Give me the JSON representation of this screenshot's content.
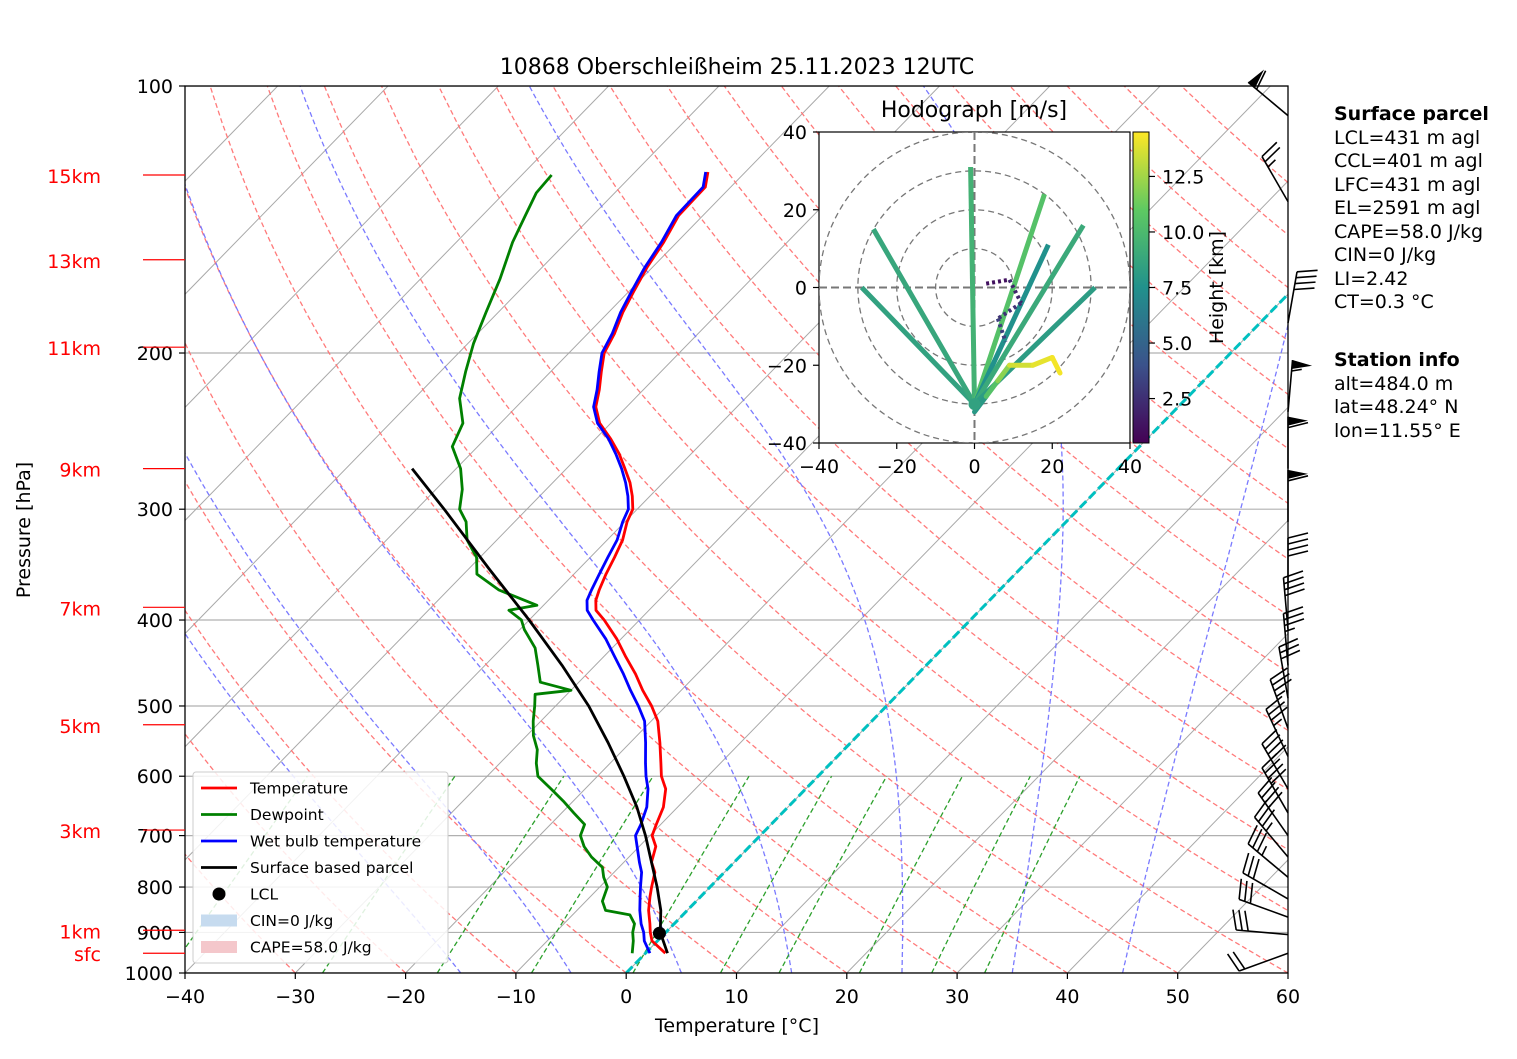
{
  "chart_data": {
    "type": "line",
    "title": "10868 Oberschleißheim 25.11.2023 12UTC",
    "xlabel": "Temperature [°C]",
    "ylabel": "Pressure [hPa]",
    "xlim": [
      -40,
      60
    ],
    "ylim": [
      1000,
      100
    ],
    "x_ticks": [
      "−40",
      "−30",
      "−20",
      "−10",
      "0",
      "10",
      "20",
      "30",
      "40",
      "50",
      "60"
    ],
    "y_ticks": [
      {
        "p": 100,
        "label": "100"
      },
      {
        "p": 200,
        "label": "200"
      },
      {
        "p": 300,
        "label": "300"
      },
      {
        "p": 400,
        "label": "400"
      },
      {
        "p": 500,
        "label": "500"
      },
      {
        "p": 600,
        "label": "600"
      },
      {
        "p": 700,
        "label": "700"
      },
      {
        "p": 800,
        "label": "800"
      },
      {
        "p": 900,
        "label": "900"
      },
      {
        "p": 1000,
        "label": "1000"
      }
    ],
    "height_labels": [
      {
        "p": 126,
        "label": "15km"
      },
      {
        "p": 157,
        "label": "13km"
      },
      {
        "p": 197,
        "label": "11km"
      },
      {
        "p": 270,
        "label": "9km"
      },
      {
        "p": 387,
        "label": "7km"
      },
      {
        "p": 525,
        "label": "5km"
      },
      {
        "p": 690,
        "label": "3km"
      },
      {
        "p": 895,
        "label": "1km"
      },
      {
        "p": 950,
        "label": "sfc"
      }
    ],
    "series": [
      {
        "name": "Temperature",
        "color": "#ff0000",
        "points": [
          [
            950,
            1.8
          ],
          [
            920,
            -0.5
          ],
          [
            900,
            -1.4
          ],
          [
            880,
            -2.2
          ],
          [
            850,
            -3.5
          ],
          [
            820,
            -4.6
          ],
          [
            800,
            -5.3
          ],
          [
            770,
            -6.3
          ],
          [
            750,
            -7.5
          ],
          [
            720,
            -8.5
          ],
          [
            700,
            -9.8
          ],
          [
            680,
            -10.4
          ],
          [
            650,
            -11.3
          ],
          [
            620,
            -12.7
          ],
          [
            600,
            -14.2
          ],
          [
            580,
            -15.4
          ],
          [
            550,
            -17.3
          ],
          [
            520,
            -19.4
          ],
          [
            500,
            -21.3
          ],
          [
            480,
            -23.5
          ],
          [
            460,
            -25.6
          ],
          [
            440,
            -28.0
          ],
          [
            420,
            -30.4
          ],
          [
            400,
            -33.2
          ],
          [
            390,
            -34.8
          ],
          [
            380,
            -35.7
          ],
          [
            370,
            -36.3
          ],
          [
            355,
            -37.1
          ],
          [
            340,
            -37.8
          ],
          [
            325,
            -38.6
          ],
          [
            310,
            -39.8
          ],
          [
            300,
            -40.4
          ],
          [
            290,
            -41.6
          ],
          [
            280,
            -43.0
          ],
          [
            270,
            -44.7
          ],
          [
            260,
            -46.5
          ],
          [
            250,
            -48.6
          ],
          [
            240,
            -51.0
          ],
          [
            230,
            -52.8
          ],
          [
            220,
            -54.0
          ],
          [
            210,
            -55.4
          ],
          [
            200,
            -56.8
          ],
          [
            190,
            -57.6
          ],
          [
            180,
            -58.7
          ],
          [
            170,
            -59.6
          ],
          [
            160,
            -60.5
          ],
          [
            150,
            -61.2
          ],
          [
            140,
            -62.2
          ],
          [
            130,
            -62.3
          ],
          [
            125,
            -63.4
          ]
        ]
      },
      {
        "name": "Dewpoint",
        "color": "#008000",
        "points": [
          [
            950,
            -1.2
          ],
          [
            920,
            -2.2
          ],
          [
            900,
            -3.0
          ],
          [
            880,
            -3.6
          ],
          [
            860,
            -4.8
          ],
          [
            850,
            -7.4
          ],
          [
            830,
            -8.5
          ],
          [
            800,
            -9.3
          ],
          [
            780,
            -10.5
          ],
          [
            760,
            -11.5
          ],
          [
            740,
            -13.4
          ],
          [
            720,
            -15.0
          ],
          [
            700,
            -16.3
          ],
          [
            680,
            -16.9
          ],
          [
            660,
            -18.9
          ],
          [
            640,
            -20.9
          ],
          [
            620,
            -23.1
          ],
          [
            600,
            -25.4
          ],
          [
            580,
            -26.7
          ],
          [
            560,
            -27.8
          ],
          [
            540,
            -29.4
          ],
          [
            520,
            -30.7
          ],
          [
            500,
            -31.9
          ],
          [
            485,
            -32.9
          ],
          [
            480,
            -30.0
          ],
          [
            470,
            -33.5
          ],
          [
            450,
            -35.2
          ],
          [
            430,
            -37.0
          ],
          [
            410,
            -39.6
          ],
          [
            400,
            -40.7
          ],
          [
            390,
            -42.7
          ],
          [
            385,
            -40.6
          ],
          [
            370,
            -45.4
          ],
          [
            355,
            -48.8
          ],
          [
            340,
            -50.3
          ],
          [
            325,
            -52.7
          ],
          [
            310,
            -54.4
          ],
          [
            300,
            -56.1
          ],
          [
            285,
            -57.6
          ],
          [
            270,
            -59.6
          ],
          [
            255,
            -62.3
          ],
          [
            240,
            -63.4
          ],
          [
            225,
            -65.9
          ],
          [
            210,
            -67.7
          ],
          [
            195,
            -69.5
          ],
          [
            180,
            -71.1
          ],
          [
            165,
            -72.8
          ],
          [
            150,
            -74.9
          ],
          [
            140,
            -76.1
          ],
          [
            132,
            -77.1
          ],
          [
            126,
            -77.3
          ]
        ]
      },
      {
        "name": "Wet bulb temperature",
        "color": "#0000ff",
        "points": [
          [
            950,
            0.4
          ],
          [
            920,
            -1.2
          ],
          [
            900,
            -2.0
          ],
          [
            880,
            -3.0
          ],
          [
            850,
            -4.3
          ],
          [
            820,
            -5.5
          ],
          [
            800,
            -6.3
          ],
          [
            770,
            -7.5
          ],
          [
            750,
            -8.6
          ],
          [
            720,
            -10.2
          ],
          [
            700,
            -11.3
          ],
          [
            680,
            -11.8
          ],
          [
            650,
            -12.8
          ],
          [
            620,
            -14.3
          ],
          [
            600,
            -15.6
          ],
          [
            580,
            -16.8
          ],
          [
            550,
            -18.6
          ],
          [
            520,
            -20.6
          ],
          [
            500,
            -22.5
          ],
          [
            480,
            -24.6
          ],
          [
            460,
            -26.7
          ],
          [
            440,
            -29.0
          ],
          [
            420,
            -31.4
          ],
          [
            400,
            -34.2
          ],
          [
            390,
            -35.6
          ],
          [
            380,
            -36.5
          ],
          [
            370,
            -37.0
          ],
          [
            355,
            -37.7
          ],
          [
            340,
            -38.4
          ],
          [
            325,
            -39.1
          ],
          [
            310,
            -40.2
          ],
          [
            300,
            -40.8
          ],
          [
            290,
            -42.0
          ],
          [
            280,
            -43.4
          ],
          [
            270,
            -45.0
          ],
          [
            260,
            -46.8
          ],
          [
            250,
            -48.8
          ],
          [
            240,
            -51.2
          ],
          [
            230,
            -53.0
          ],
          [
            220,
            -54.2
          ],
          [
            210,
            -55.6
          ],
          [
            200,
            -57.0
          ],
          [
            190,
            -57.8
          ],
          [
            180,
            -58.9
          ],
          [
            170,
            -59.8
          ],
          [
            160,
            -60.7
          ],
          [
            150,
            -61.4
          ],
          [
            140,
            -62.4
          ],
          [
            130,
            -62.5
          ],
          [
            125,
            -63.6
          ]
        ]
      },
      {
        "name": "Surface based parcel",
        "color": "#000000",
        "points": [
          [
            950,
            2.0
          ],
          [
            900,
            -0.5
          ],
          [
            850,
            -2.4
          ],
          [
            800,
            -4.8
          ],
          [
            750,
            -7.5
          ],
          [
            700,
            -10.4
          ],
          [
            650,
            -13.7
          ],
          [
            600,
            -17.6
          ],
          [
            550,
            -22.0
          ],
          [
            500,
            -27.0
          ],
          [
            450,
            -33.0
          ],
          [
            400,
            -40.0
          ],
          [
            350,
            -48.2
          ],
          [
            300,
            -57.5
          ],
          [
            270,
            -64.0
          ]
        ]
      }
    ],
    "lcl": {
      "name": "LCL",
      "temperature": -0.5,
      "pressure": 902
    },
    "legend": {
      "position": "lower-left",
      "entries": [
        "Temperature",
        "Dewpoint",
        "Wet bulb temperature",
        "Surface based parcel",
        "LCL",
        "CIN=0 J/kg",
        "CAPE=58.0 J/kg"
      ]
    },
    "wind_barbs": [
      {
        "p": 950,
        "speed_kt": 20,
        "dir_deg": 250
      },
      {
        "p": 905,
        "speed_kt": 30,
        "dir_deg": 275
      },
      {
        "p": 865,
        "speed_kt": 30,
        "dir_deg": 290
      },
      {
        "p": 825,
        "speed_kt": 30,
        "dir_deg": 300
      },
      {
        "p": 780,
        "speed_kt": 35,
        "dir_deg": 310
      },
      {
        "p": 740,
        "speed_kt": 35,
        "dir_deg": 320
      },
      {
        "p": 700,
        "speed_kt": 40,
        "dir_deg": 325
      },
      {
        "p": 660,
        "speed_kt": 40,
        "dir_deg": 330
      },
      {
        "p": 620,
        "speed_kt": 40,
        "dir_deg": 330
      },
      {
        "p": 570,
        "speed_kt": 35,
        "dir_deg": 335
      },
      {
        "p": 530,
        "speed_kt": 35,
        "dir_deg": 340
      },
      {
        "p": 490,
        "speed_kt": 30,
        "dir_deg": 350
      },
      {
        "p": 450,
        "speed_kt": 35,
        "dir_deg": 355
      },
      {
        "p": 410,
        "speed_kt": 40,
        "dir_deg": 355
      },
      {
        "p": 370,
        "speed_kt": 40,
        "dir_deg": 0
      },
      {
        "p": 310,
        "speed_kt": 60,
        "dir_deg": 0
      },
      {
        "p": 270,
        "speed_kt": 60,
        "dir_deg": 0
      },
      {
        "p": 233,
        "speed_kt": 55,
        "dir_deg": 5
      },
      {
        "p": 185,
        "speed_kt": 40,
        "dir_deg": 10
      },
      {
        "p": 135,
        "speed_kt": 25,
        "dir_deg": 330
      },
      {
        "p": 108,
        "speed_kt": 60,
        "dir_deg": 310
      }
    ],
    "hodograph": {
      "title": "Hodograph [m/s]",
      "xlim": [
        -40,
        40
      ],
      "ylim": [
        -40,
        40
      ],
      "ticks": [
        "−40",
        "−20",
        "0",
        "20",
        "40"
      ],
      "colorbar_label": "Height [km]",
      "colorbar_ticks": [
        "2.5",
        "5.0",
        "7.5",
        "10.0",
        "12.5"
      ],
      "colormap": "viridis",
      "height_range_km": [
        0.5,
        14.5
      ],
      "origin": [
        0,
        -30
      ],
      "spokes": [
        {
          "u": -29,
          "v": 0,
          "height_km": 8.5
        },
        {
          "u": -26,
          "v": 15,
          "height_km": 8.8
        },
        {
          "u": -1,
          "v": 31,
          "height_km": 9.5
        },
        {
          "u": 18,
          "v": 24,
          "height_km": 10.5
        },
        {
          "u": 19,
          "v": 11,
          "height_km": 7.5
        },
        {
          "u": 28,
          "v": 16,
          "height_km": 9.0
        },
        {
          "u": 31,
          "v": 0,
          "height_km": 8.2
        }
      ],
      "track": [
        {
          "u": 0,
          "v": -32,
          "height_km": 0.6
        },
        {
          "u": 3,
          "v": -28,
          "height_km": 8.0
        },
        {
          "u": 6,
          "v": -24,
          "height_km": 10.5
        },
        {
          "u": 9,
          "v": -20,
          "height_km": 12.0
        },
        {
          "u": 15,
          "v": -20,
          "height_km": 13.5
        },
        {
          "u": 20,
          "v": -18,
          "height_km": 14.0
        },
        {
          "u": 22,
          "v": -22,
          "height_km": 14.3
        }
      ],
      "low_track": [
        {
          "u": 3,
          "v": 1,
          "height_km": 1.0
        },
        {
          "u": 9,
          "v": 2,
          "height_km": 1.2
        },
        {
          "u": 12,
          "v": -4,
          "height_km": 2.0
        },
        {
          "u": 6,
          "v": -8,
          "height_km": 2.6
        },
        {
          "u": 8,
          "v": -14,
          "height_km": 3.2
        }
      ]
    }
  },
  "info": {
    "surface_title": "Surface parcel",
    "surface_lines": [
      "LCL=431 m agl",
      "CCL=401 m agl",
      "LFC=431 m agl",
      "EL=2591 m agl",
      "CAPE=58.0 J/kg",
      "CIN=0 J/kg",
      "LI=2.42",
      "CT=0.3 °C"
    ],
    "station_title": "Station info",
    "station_lines": [
      "alt=484.0 m",
      "lat=48.24° N",
      "lon=11.55° E"
    ]
  },
  "colors": {
    "temperature": "#ff0000",
    "dewpoint": "#008000",
    "wetbulb": "#0000ff",
    "parcel": "#000000",
    "isotherm_zero": "#00c0c0",
    "dry_adiabat": "#ff7373",
    "moist_adiabat": "#7373ff",
    "mixing_ratio": "#2ca02c",
    "height_labels": "#ff0000",
    "cin_fill": "#c6dbef",
    "cape_fill": "#f4c7cb"
  }
}
